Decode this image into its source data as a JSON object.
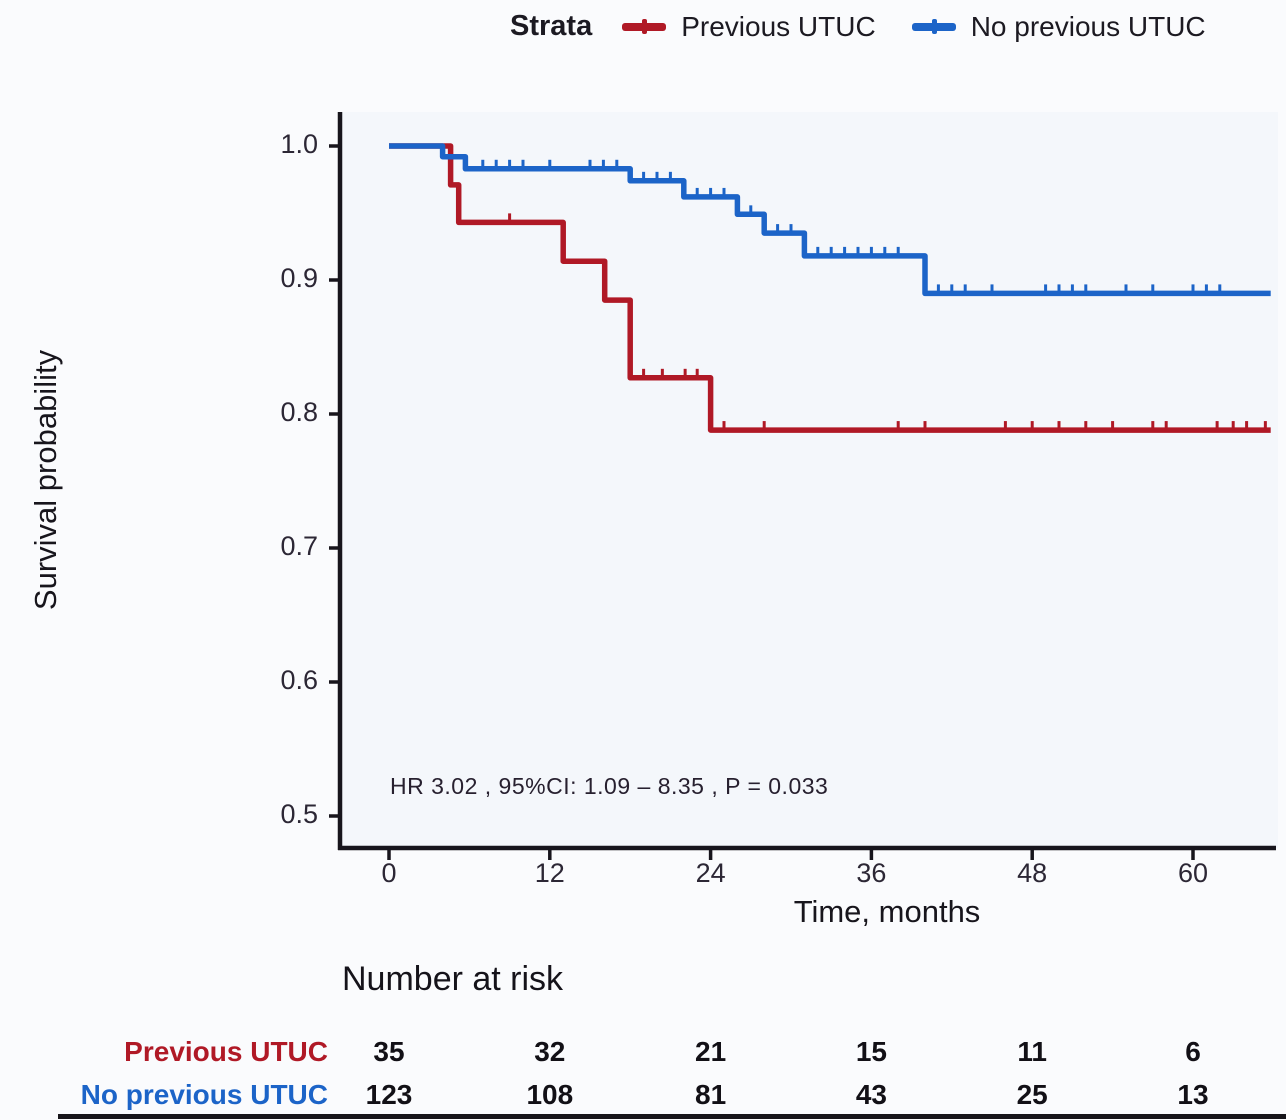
{
  "colors": {
    "previous_utuc": "#b01926",
    "no_previous_utuc": "#1c64c8",
    "axis": "#17151c",
    "background": "#fafbfd",
    "plot_background": "#f4f7fb"
  },
  "legend": {
    "title": "Strata",
    "items": [
      {
        "label": "Previous UTUC",
        "color": "#b01926"
      },
      {
        "label": "No previous UTUC",
        "color": "#1c64c8"
      }
    ]
  },
  "chart_data": {
    "type": "line",
    "subtype": "kaplan-meier-step",
    "title": "",
    "xlabel": "Time, months",
    "ylabel": "Survival probability",
    "xlim": [
      0,
      66
    ],
    "ylim": [
      0.48,
      1.02
    ],
    "xticks": [
      0,
      12,
      24,
      36,
      48,
      60
    ],
    "yticks": [
      1.0,
      0.9,
      0.8,
      0.7,
      0.6,
      0.5
    ],
    "grid": false,
    "legend_position": "top",
    "annotation": "HR  3.02 , 95%CI:  1.09 – 8.35 ,  P = 0.033",
    "series": [
      {
        "name": "Previous UTUC",
        "color": "#b01926",
        "steps": [
          [
            0,
            1.0
          ],
          [
            4.6,
            1.0
          ],
          [
            4.6,
            0.971
          ],
          [
            5.2,
            0.971
          ],
          [
            5.2,
            0.943
          ],
          [
            13,
            0.943
          ],
          [
            13,
            0.914
          ],
          [
            16.1,
            0.914
          ],
          [
            16.1,
            0.885
          ],
          [
            18,
            0.885
          ],
          [
            18,
            0.827
          ],
          [
            24,
            0.827
          ],
          [
            24,
            0.788
          ],
          [
            65.8,
            0.788
          ]
        ],
        "censors": [
          [
            9,
            0.943
          ],
          [
            19,
            0.827
          ],
          [
            20.4,
            0.827
          ],
          [
            22.1,
            0.827
          ],
          [
            23,
            0.827
          ],
          [
            25,
            0.788
          ],
          [
            28,
            0.788
          ],
          [
            38,
            0.788
          ],
          [
            40,
            0.788
          ],
          [
            46,
            0.788
          ],
          [
            48,
            0.788
          ],
          [
            50,
            0.788
          ],
          [
            52,
            0.788
          ],
          [
            54,
            0.788
          ],
          [
            57,
            0.788
          ],
          [
            58,
            0.788
          ],
          [
            61.8,
            0.788
          ],
          [
            63,
            0.788
          ],
          [
            64,
            0.788
          ],
          [
            65.4,
            0.788
          ]
        ]
      },
      {
        "name": "No previous UTUC",
        "color": "#1c64c8",
        "steps": [
          [
            0,
            1.0
          ],
          [
            4.0,
            1.0
          ],
          [
            4.0,
            0.992
          ],
          [
            5.7,
            0.992
          ],
          [
            5.7,
            0.983
          ],
          [
            18,
            0.983
          ],
          [
            18,
            0.974
          ],
          [
            22,
            0.974
          ],
          [
            22,
            0.962
          ],
          [
            26,
            0.962
          ],
          [
            26,
            0.949
          ],
          [
            28,
            0.949
          ],
          [
            28,
            0.935
          ],
          [
            31,
            0.935
          ],
          [
            31,
            0.918
          ],
          [
            40,
            0.918
          ],
          [
            40,
            0.89
          ],
          [
            65.8,
            0.89
          ]
        ],
        "censors": [
          [
            7,
            0.983
          ],
          [
            8,
            0.983
          ],
          [
            9,
            0.983
          ],
          [
            10,
            0.983
          ],
          [
            12,
            0.983
          ],
          [
            15,
            0.983
          ],
          [
            16,
            0.983
          ],
          [
            17,
            0.983
          ],
          [
            19,
            0.974
          ],
          [
            20,
            0.974
          ],
          [
            21,
            0.974
          ],
          [
            23,
            0.962
          ],
          [
            24,
            0.962
          ],
          [
            25,
            0.962
          ],
          [
            27,
            0.949
          ],
          [
            29,
            0.935
          ],
          [
            30,
            0.935
          ],
          [
            32,
            0.918
          ],
          [
            33,
            0.918
          ],
          [
            34,
            0.918
          ],
          [
            35,
            0.918
          ],
          [
            36,
            0.918
          ],
          [
            37,
            0.918
          ],
          [
            38,
            0.918
          ],
          [
            41,
            0.89
          ],
          [
            42,
            0.89
          ],
          [
            43,
            0.89
          ],
          [
            45,
            0.89
          ],
          [
            49,
            0.89
          ],
          [
            50,
            0.89
          ],
          [
            51,
            0.89
          ],
          [
            52,
            0.89
          ],
          [
            55,
            0.89
          ],
          [
            57,
            0.89
          ],
          [
            60,
            0.89
          ],
          [
            61,
            0.89
          ],
          [
            62,
            0.89
          ]
        ]
      }
    ],
    "risk_table": {
      "title": "Number at risk",
      "times": [
        0,
        12,
        24,
        36,
        48,
        60
      ],
      "rows": [
        {
          "label": "Previous UTUC",
          "color": "#b01926",
          "values": [
            "35",
            "32",
            "21",
            "15",
            "11",
            "6"
          ]
        },
        {
          "label": "No previous UTUC",
          "color": "#1c64c8",
          "values": [
            "123",
            "108",
            "81",
            "43",
            "25",
            "13"
          ]
        }
      ]
    }
  }
}
